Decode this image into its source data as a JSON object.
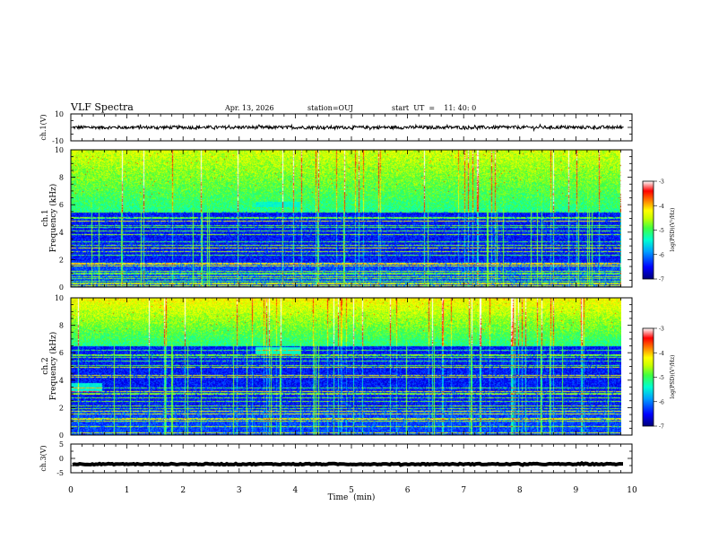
{
  "header": {
    "title": "VLF Spectra",
    "date": "Apr. 13, 2026",
    "station": "station=OUJ",
    "start": "start  UT  =    11: 40: 0"
  },
  "chart_data": [
    {
      "type": "line",
      "name": "ch1-waveform",
      "ylabel": "ch.1(V)",
      "ylim": [
        -10,
        10
      ],
      "yticks": [
        "10",
        "-10"
      ],
      "baseline": 0,
      "amplitude": 1.2
    },
    {
      "type": "heatmap",
      "name": "ch1-spectrogram",
      "ylabel": "ch.1 Frequency (kHz)",
      "ylim": [
        0,
        10
      ],
      "yticks": [
        "0",
        "2",
        "4",
        "6",
        "8",
        "10"
      ],
      "colorbar": {
        "label": "log(PSD)(V²/Hz)",
        "range": [
          -7,
          -3
        ],
        "ticks": [
          "-3",
          "-4",
          "-5",
          "-6",
          "-7"
        ]
      },
      "noise_boundary_khz": 5.5,
      "whistler_band_khz": [
        5.8,
        6.2
      ]
    },
    {
      "type": "heatmap",
      "name": "ch2-spectrogram",
      "ylabel": "ch.2 Frequency (kHz)",
      "ylim": [
        0,
        10
      ],
      "yticks": [
        "0",
        "2",
        "4",
        "6",
        "8",
        "10"
      ],
      "colorbar": {
        "label": "log(PSD)(V²/Hz)",
        "range": [
          -7,
          -3
        ],
        "ticks": [
          "-3",
          "-4",
          "-5",
          "-6",
          "-7"
        ]
      },
      "noise_boundary_khz": 6.5,
      "whistler_band_khz": [
        5.8,
        6.4
      ]
    },
    {
      "type": "line",
      "name": "ch3-waveform",
      "ylabel": "ch.3(V)",
      "ylim": [
        -5,
        5
      ],
      "yticks": [
        "5",
        "0",
        "-5"
      ],
      "baseline": -2,
      "amplitude": 0.2
    }
  ],
  "xaxis": {
    "label": "Time  (min)",
    "range": [
      0,
      10
    ],
    "ticks": [
      "0",
      "1",
      "2",
      "3",
      "4",
      "5",
      "6",
      "7",
      "8",
      "9",
      "10"
    ],
    "data_end": 9.85
  },
  "colors": {
    "frame": "#000000",
    "colormap": [
      "#00007a",
      "#0000ff",
      "#00a0ff",
      "#00ffd0",
      "#40ff40",
      "#c8ff00",
      "#ffff00",
      "#ff8000",
      "#ff0000",
      "#ffffff"
    ]
  }
}
